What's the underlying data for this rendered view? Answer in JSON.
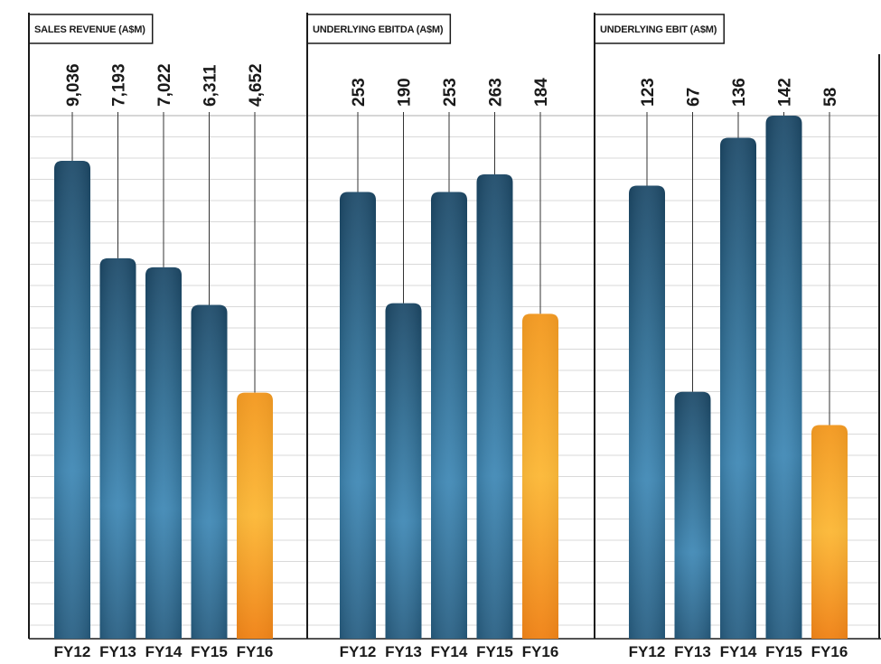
{
  "chart_data": [
    {
      "type": "bar",
      "title": "SALES REVENUE (A$M)",
      "categories": [
        "FY12",
        "FY13",
        "FY14",
        "FY15",
        "FY16"
      ],
      "values": [
        9036,
        7193,
        7022,
        6311,
        4652
      ],
      "value_labels": [
        "9,036",
        "7,193",
        "7,022",
        "6,311",
        "4,652"
      ],
      "highlight_index": 4
    },
    {
      "type": "bar",
      "title": "UNDERLYING EBITDA (A$M)",
      "categories": [
        "FY12",
        "FY13",
        "FY14",
        "FY15",
        "FY16"
      ],
      "values": [
        253,
        190,
        253,
        263,
        184
      ],
      "value_labels": [
        "253",
        "190",
        "253",
        "263",
        "184"
      ],
      "highlight_index": 4
    },
    {
      "type": "bar",
      "title": "UNDERLYING EBIT (A$M)",
      "categories": [
        "FY12",
        "FY13",
        "FY14",
        "FY15",
        "FY16"
      ],
      "values": [
        123,
        67,
        136,
        142,
        58
      ],
      "value_labels": [
        "123",
        "67",
        "136",
        "142",
        "58"
      ],
      "highlight_index": 4
    }
  ],
  "colors": {
    "bar_dark": "#1e4e6e",
    "bar_mid": "#2f6f95",
    "bar_light": "#4592bf",
    "highlight_dark": "#f08a1c",
    "highlight_light": "#fbb636",
    "grid": "#d9d9d9",
    "frame": "#1a1a1a"
  }
}
